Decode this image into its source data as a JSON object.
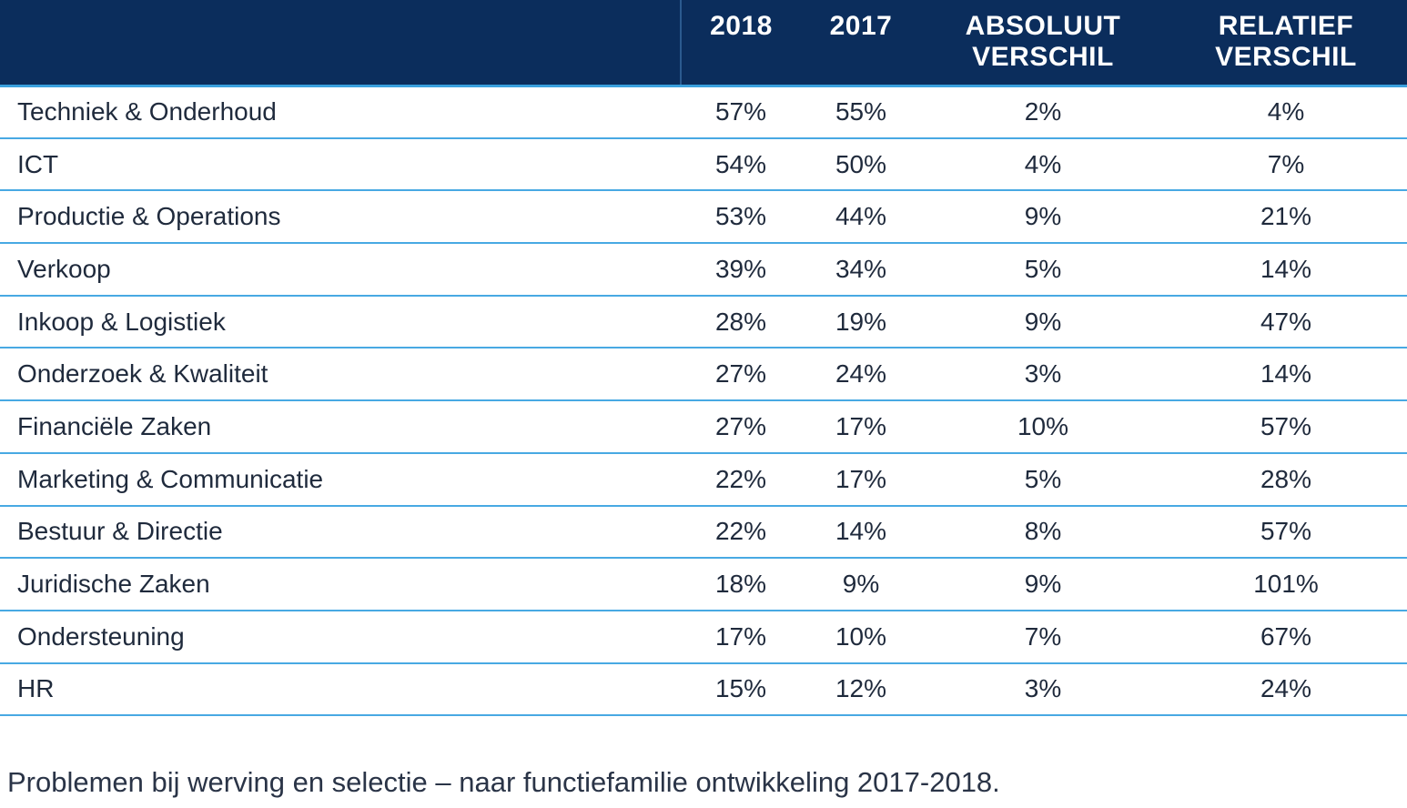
{
  "chart_data": {
    "type": "table",
    "columns": [
      "",
      "2018",
      "2017",
      "ABSOLUUT VERSCHIL",
      "RELATIEF VERSCHIL"
    ],
    "header": {
      "label": "",
      "y2018": "2018",
      "y2017": "2017",
      "abs_line1": "ABSOLUUT",
      "abs_line2": "VERSCHIL",
      "rel_line1": "RELATIEF",
      "rel_line2": "VERSCHIL"
    },
    "rows": [
      {
        "label": "Techniek & Onderhoud",
        "y2018": "57%",
        "y2017": "55%",
        "abs": "2%",
        "rel": "4%"
      },
      {
        "label": "ICT",
        "y2018": "54%",
        "y2017": "50%",
        "abs": "4%",
        "rel": "7%"
      },
      {
        "label": "Productie & Operations",
        "y2018": "53%",
        "y2017": "44%",
        "abs": "9%",
        "rel": "21%"
      },
      {
        "label": "Verkoop",
        "y2018": "39%",
        "y2017": "34%",
        "abs": "5%",
        "rel": "14%"
      },
      {
        "label": "Inkoop & Logistiek",
        "y2018": "28%",
        "y2017": "19%",
        "abs": "9%",
        "rel": "47%"
      },
      {
        "label": "Onderzoek & Kwaliteit",
        "y2018": "27%",
        "y2017": "24%",
        "abs": "3%",
        "rel": "14%"
      },
      {
        "label": "Financiële Zaken",
        "y2018": "27%",
        "y2017": "17%",
        "abs": "10%",
        "rel": "57%"
      },
      {
        "label": "Marketing & Communicatie",
        "y2018": "22%",
        "y2017": "17%",
        "abs": "5%",
        "rel": "28%"
      },
      {
        "label": "Bestuur & Directie",
        "y2018": "22%",
        "y2017": "14%",
        "abs": "8%",
        "rel": "57%"
      },
      {
        "label": "Juridische Zaken",
        "y2018": "18%",
        "y2017": "9%",
        "abs": "9%",
        "rel": "101%"
      },
      {
        "label": "Ondersteuning",
        "y2018": "17%",
        "y2017": "10%",
        "abs": "7%",
        "rel": "67%"
      },
      {
        "label": "HR",
        "y2018": "15%",
        "y2017": "12%",
        "abs": "3%",
        "rel": "24%"
      }
    ],
    "caption": "Problemen bij werving en selectie – naar functiefamilie ontwikkeling 2017-2018."
  },
  "colors": {
    "header_bg": "#0b2d5c",
    "row_divider": "#48a9e3",
    "text": "#1f2a3c"
  }
}
